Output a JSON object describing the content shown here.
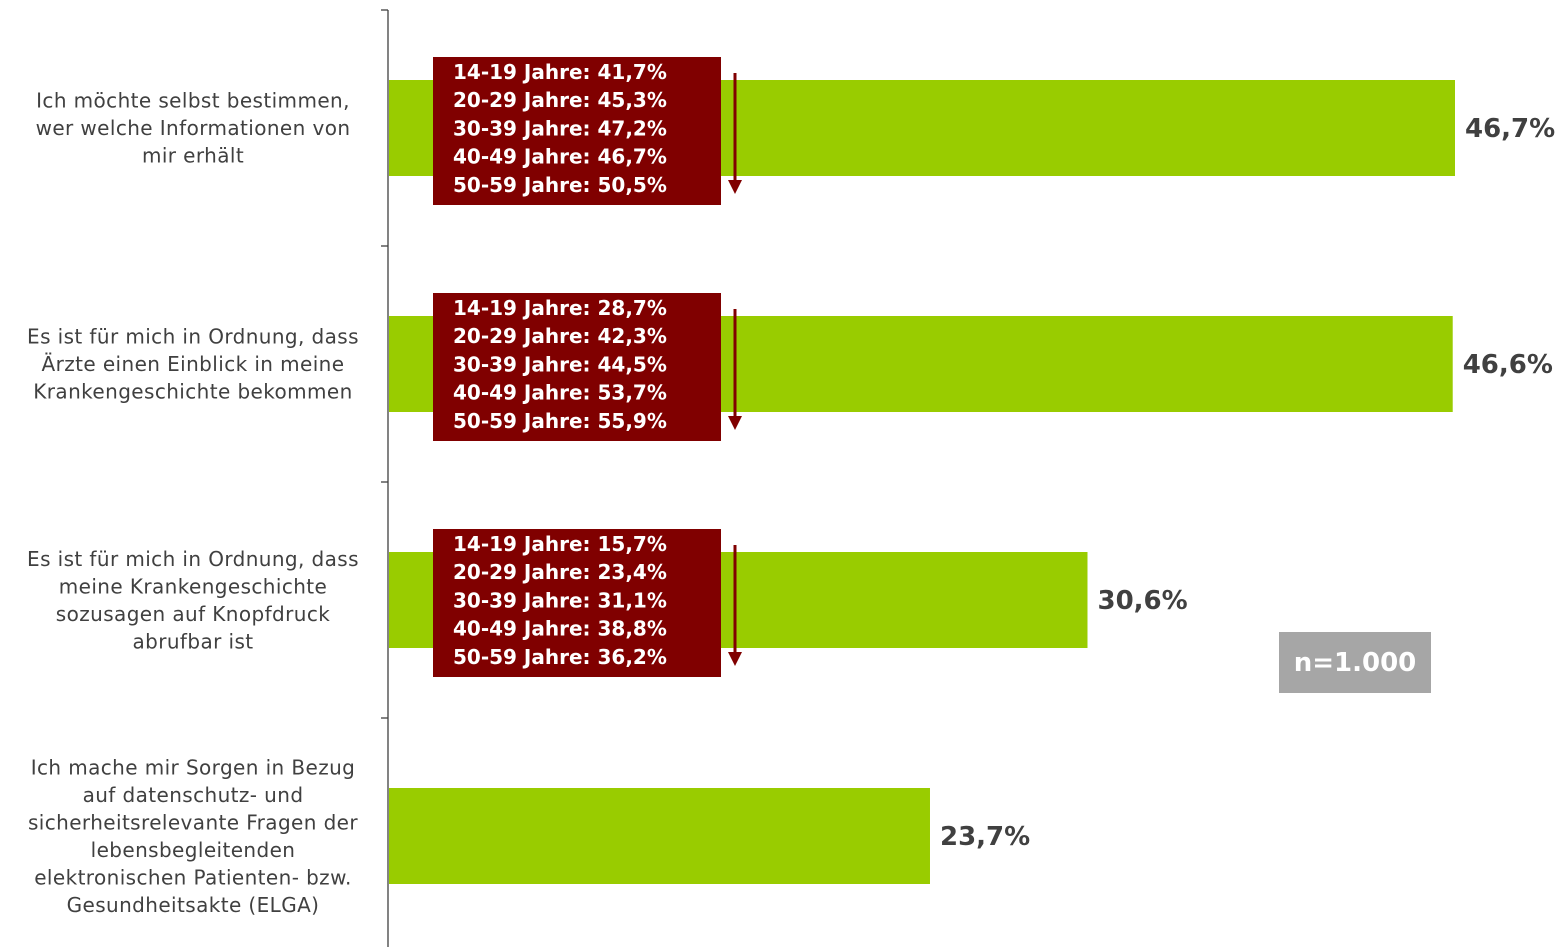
{
  "colors": {
    "bar": "#99cc00",
    "age_box": "#800000",
    "arrow": "#800000",
    "text": "#404040",
    "axis": "#404040",
    "n_box": "#a6a6a6"
  },
  "n_badge": "n=1.000",
  "chart_data": {
    "type": "bar",
    "orientation": "horizontal",
    "xlim": [
      0,
      50
    ],
    "grid": false,
    "categories": [
      [
        "Ich möchte selbst bestimmen,",
        "wer welche Informationen von",
        "mir erhält"
      ],
      [
        "Es ist für mich in Ordnung, dass",
        "Ärzte einen Einblick in meine",
        "Krankengeschichte bekommen"
      ],
      [
        "Es ist für mich in Ordnung, dass",
        "meine Krankengeschichte",
        "sozusagen auf Knopfdruck",
        "abrufbar ist"
      ],
      [
        "Ich mache mir Sorgen in Bezug",
        "auf datenschutz- und",
        "sicherheitsrelevante Fragen der",
        "lebensbegleitenden",
        "elektronischen Patienten- bzw.",
        "Gesundheitsakte (ELGA)"
      ]
    ],
    "values": [
      46.7,
      46.6,
      30.6,
      23.7
    ],
    "value_labels": [
      "46,7%",
      "46,6%",
      "30,6%",
      "23,7%"
    ],
    "age_breakdown": [
      [
        "14-19 Jahre: 41,7%",
        "20-29 Jahre: 45,3%",
        "30-39 Jahre: 47,2%",
        "40-49 Jahre: 46,7%",
        "50-59 Jahre: 50,5%"
      ],
      [
        "14-19 Jahre: 28,7%",
        "20-29 Jahre: 42,3%",
        "30-39 Jahre: 44,5%",
        "40-49 Jahre: 53,7%",
        "50-59 Jahre: 55,9%"
      ],
      [
        "14-19 Jahre: 15,7%",
        "20-29 Jahre: 23,4%",
        "30-39 Jahre: 31,1%",
        "40-49 Jahre: 38,8%",
        "50-59 Jahre: 36,2%"
      ],
      []
    ]
  }
}
